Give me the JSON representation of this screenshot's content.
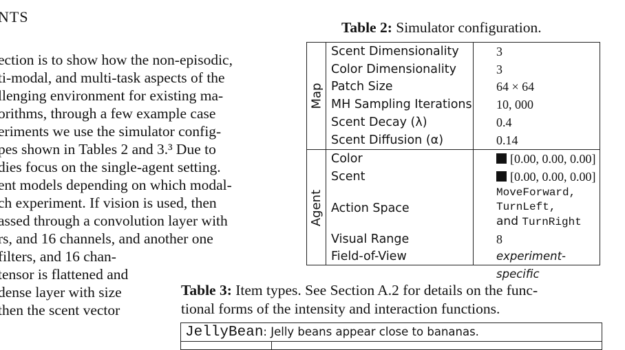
{
  "section_heading": "NTS",
  "body_lines": [
    "ection is to show how the non-episodic,",
    "ti-modal, and multi-task aspects of the",
    "llenging environment for existing ma-",
    "orithms, through a few example case",
    "eriments we use the simulator config-",
    "pes shown in Tables 2 and 3.³ Due to",
    "dies focus on the single-agent setting.",
    "ent models depending on which modal-",
    "ch experiment. If vision is used, then",
    "assed through a convolution layer with",
    "rs, and 16 channels, and another one",
    " filters, and 16 chan-",
    "tensor is flattened and",
    "dense layer with size",
    " then the scent vector"
  ],
  "table2": {
    "caption_label": "Table 2:",
    "caption_text": " Simulator configuration.",
    "groups": {
      "map": "Map",
      "agent": "Agent"
    },
    "map_rows": [
      {
        "key": "Scent Dimensionality",
        "value": "3"
      },
      {
        "key": "Color Dimensionality",
        "value": "3"
      },
      {
        "key": "Patch Size",
        "value": "64 × 64"
      },
      {
        "key": "MH Sampling Iterations",
        "value": "10, 000"
      },
      {
        "key": "Scent Decay (λ)",
        "value": "0.4"
      },
      {
        "key": "Scent Diffusion (α)",
        "value": "0.14"
      }
    ],
    "agent_rows": {
      "color": {
        "key": "Color",
        "value": "[0.00, 0.00, 0.00]"
      },
      "scent": {
        "key": "Scent",
        "value": "[0.00, 0.00, 0.00]"
      },
      "action": {
        "key": "Action Space",
        "line1": "MoveForward,",
        "line2": "TurnLeft,",
        "and": "and ",
        "line3": "TurnRight"
      },
      "visual": {
        "key": "Visual Range",
        "value": "8"
      },
      "fov": {
        "key": "Field-of-View",
        "value": "experiment-specific"
      }
    }
  },
  "table3": {
    "caption_label": "Table 3:",
    "caption_line1": " Item types.  See Section A.2 for details on the func-",
    "caption_line2": "tional forms of the intensity and interaction functions.",
    "row_title_mono": "JellyBean",
    "row_title_text": ": Jelly beans appear close to bananas."
  }
}
